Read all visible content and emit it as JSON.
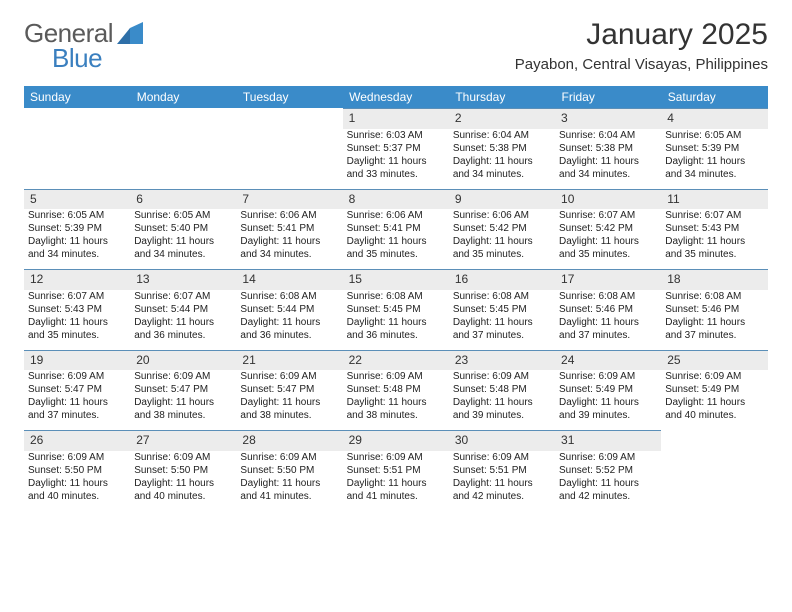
{
  "brand": {
    "general": "General",
    "blue": "Blue"
  },
  "title": "January 2025",
  "location": "Payabon, Central Visayas, Philippines",
  "colors": {
    "header_bg": "#3a8bc9",
    "header_text": "#ffffff",
    "daynum_bg": "#ececec",
    "rule": "#5b8fb8",
    "logo_blue": "#3a7fbf",
    "logo_gray": "#5a5a5a",
    "page_bg": "#ffffff",
    "body_text": "#222222"
  },
  "day_headers": [
    "Sunday",
    "Monday",
    "Tuesday",
    "Wednesday",
    "Thursday",
    "Friday",
    "Saturday"
  ],
  "weeks": [
    [
      null,
      null,
      null,
      {
        "n": "1",
        "sr": "Sunrise: 6:03 AM",
        "ss": "Sunset: 5:37 PM",
        "d1": "Daylight: 11 hours",
        "d2": "and 33 minutes."
      },
      {
        "n": "2",
        "sr": "Sunrise: 6:04 AM",
        "ss": "Sunset: 5:38 PM",
        "d1": "Daylight: 11 hours",
        "d2": "and 34 minutes."
      },
      {
        "n": "3",
        "sr": "Sunrise: 6:04 AM",
        "ss": "Sunset: 5:38 PM",
        "d1": "Daylight: 11 hours",
        "d2": "and 34 minutes."
      },
      {
        "n": "4",
        "sr": "Sunrise: 6:05 AM",
        "ss": "Sunset: 5:39 PM",
        "d1": "Daylight: 11 hours",
        "d2": "and 34 minutes."
      }
    ],
    [
      {
        "n": "5",
        "sr": "Sunrise: 6:05 AM",
        "ss": "Sunset: 5:39 PM",
        "d1": "Daylight: 11 hours",
        "d2": "and 34 minutes."
      },
      {
        "n": "6",
        "sr": "Sunrise: 6:05 AM",
        "ss": "Sunset: 5:40 PM",
        "d1": "Daylight: 11 hours",
        "d2": "and 34 minutes."
      },
      {
        "n": "7",
        "sr": "Sunrise: 6:06 AM",
        "ss": "Sunset: 5:41 PM",
        "d1": "Daylight: 11 hours",
        "d2": "and 34 minutes."
      },
      {
        "n": "8",
        "sr": "Sunrise: 6:06 AM",
        "ss": "Sunset: 5:41 PM",
        "d1": "Daylight: 11 hours",
        "d2": "and 35 minutes."
      },
      {
        "n": "9",
        "sr": "Sunrise: 6:06 AM",
        "ss": "Sunset: 5:42 PM",
        "d1": "Daylight: 11 hours",
        "d2": "and 35 minutes."
      },
      {
        "n": "10",
        "sr": "Sunrise: 6:07 AM",
        "ss": "Sunset: 5:42 PM",
        "d1": "Daylight: 11 hours",
        "d2": "and 35 minutes."
      },
      {
        "n": "11",
        "sr": "Sunrise: 6:07 AM",
        "ss": "Sunset: 5:43 PM",
        "d1": "Daylight: 11 hours",
        "d2": "and 35 minutes."
      }
    ],
    [
      {
        "n": "12",
        "sr": "Sunrise: 6:07 AM",
        "ss": "Sunset: 5:43 PM",
        "d1": "Daylight: 11 hours",
        "d2": "and 35 minutes."
      },
      {
        "n": "13",
        "sr": "Sunrise: 6:07 AM",
        "ss": "Sunset: 5:44 PM",
        "d1": "Daylight: 11 hours",
        "d2": "and 36 minutes."
      },
      {
        "n": "14",
        "sr": "Sunrise: 6:08 AM",
        "ss": "Sunset: 5:44 PM",
        "d1": "Daylight: 11 hours",
        "d2": "and 36 minutes."
      },
      {
        "n": "15",
        "sr": "Sunrise: 6:08 AM",
        "ss": "Sunset: 5:45 PM",
        "d1": "Daylight: 11 hours",
        "d2": "and 36 minutes."
      },
      {
        "n": "16",
        "sr": "Sunrise: 6:08 AM",
        "ss": "Sunset: 5:45 PM",
        "d1": "Daylight: 11 hours",
        "d2": "and 37 minutes."
      },
      {
        "n": "17",
        "sr": "Sunrise: 6:08 AM",
        "ss": "Sunset: 5:46 PM",
        "d1": "Daylight: 11 hours",
        "d2": "and 37 minutes."
      },
      {
        "n": "18",
        "sr": "Sunrise: 6:08 AM",
        "ss": "Sunset: 5:46 PM",
        "d1": "Daylight: 11 hours",
        "d2": "and 37 minutes."
      }
    ],
    [
      {
        "n": "19",
        "sr": "Sunrise: 6:09 AM",
        "ss": "Sunset: 5:47 PM",
        "d1": "Daylight: 11 hours",
        "d2": "and 37 minutes."
      },
      {
        "n": "20",
        "sr": "Sunrise: 6:09 AM",
        "ss": "Sunset: 5:47 PM",
        "d1": "Daylight: 11 hours",
        "d2": "and 38 minutes."
      },
      {
        "n": "21",
        "sr": "Sunrise: 6:09 AM",
        "ss": "Sunset: 5:47 PM",
        "d1": "Daylight: 11 hours",
        "d2": "and 38 minutes."
      },
      {
        "n": "22",
        "sr": "Sunrise: 6:09 AM",
        "ss": "Sunset: 5:48 PM",
        "d1": "Daylight: 11 hours",
        "d2": "and 38 minutes."
      },
      {
        "n": "23",
        "sr": "Sunrise: 6:09 AM",
        "ss": "Sunset: 5:48 PM",
        "d1": "Daylight: 11 hours",
        "d2": "and 39 minutes."
      },
      {
        "n": "24",
        "sr": "Sunrise: 6:09 AM",
        "ss": "Sunset: 5:49 PM",
        "d1": "Daylight: 11 hours",
        "d2": "and 39 minutes."
      },
      {
        "n": "25",
        "sr": "Sunrise: 6:09 AM",
        "ss": "Sunset: 5:49 PM",
        "d1": "Daylight: 11 hours",
        "d2": "and 40 minutes."
      }
    ],
    [
      {
        "n": "26",
        "sr": "Sunrise: 6:09 AM",
        "ss": "Sunset: 5:50 PM",
        "d1": "Daylight: 11 hours",
        "d2": "and 40 minutes."
      },
      {
        "n": "27",
        "sr": "Sunrise: 6:09 AM",
        "ss": "Sunset: 5:50 PM",
        "d1": "Daylight: 11 hours",
        "d2": "and 40 minutes."
      },
      {
        "n": "28",
        "sr": "Sunrise: 6:09 AM",
        "ss": "Sunset: 5:50 PM",
        "d1": "Daylight: 11 hours",
        "d2": "and 41 minutes."
      },
      {
        "n": "29",
        "sr": "Sunrise: 6:09 AM",
        "ss": "Sunset: 5:51 PM",
        "d1": "Daylight: 11 hours",
        "d2": "and 41 minutes."
      },
      {
        "n": "30",
        "sr": "Sunrise: 6:09 AM",
        "ss": "Sunset: 5:51 PM",
        "d1": "Daylight: 11 hours",
        "d2": "and 42 minutes."
      },
      {
        "n": "31",
        "sr": "Sunrise: 6:09 AM",
        "ss": "Sunset: 5:52 PM",
        "d1": "Daylight: 11 hours",
        "d2": "and 42 minutes."
      },
      null
    ]
  ]
}
